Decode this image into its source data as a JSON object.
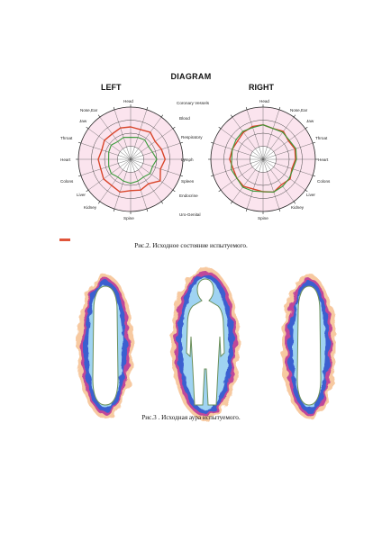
{
  "diagram": {
    "title": "DIAGRAM",
    "left_label": "LEFT",
    "right_label": "RIGHT",
    "left_labels": {
      "head": "Head",
      "nose_ear": "Nose,Ear",
      "jaw": "Jaw",
      "throat": "Throat",
      "heart": "Heart",
      "colons": "Colons",
      "liver": "Liver",
      "kidney": "Kidney",
      "spine": "Spine"
    },
    "center_labels": {
      "coronary_vessels": "Coronary Vessels",
      "blood": "Blood",
      "respiratory": "Respiratory",
      "lymph": "Lymph",
      "spleen": "Spleen",
      "endocrine": "Endocrine",
      "uro_genital": "Uro-Genital"
    },
    "right_labels": {
      "head": "Head",
      "nose_ear": "Nose,Ear",
      "jaw": "Jaw",
      "throat": "Throat",
      "heart": "Heart",
      "colons": "Colons",
      "liver": "Liver",
      "kidney": "Kidney",
      "spine": "Spine"
    }
  },
  "chart_data": [
    {
      "type": "radar",
      "panel": "LEFT",
      "rlim": [
        0,
        1
      ],
      "grid": true,
      "series": [
        {
          "color": "#d8452a",
          "values": [
            0.62,
            0.6,
            0.64,
            0.58,
            0.62,
            0.66,
            0.6,
            0.7,
            0.58,
            0.62,
            0.6,
            0.66,
            0.62,
            0.64,
            0.6,
            0.62,
            0.58,
            0.62,
            0.6,
            0.63
          ]
        },
        {
          "color": "#3a9a3a",
          "values": [
            0.42,
            0.44,
            0.46,
            0.42,
            0.44,
            0.5,
            0.44,
            0.46,
            0.42,
            0.44,
            0.46,
            0.44,
            0.42,
            0.46,
            0.44,
            0.42,
            0.44,
            0.46,
            0.42,
            0.44
          ]
        }
      ]
    },
    {
      "type": "radar",
      "panel": "RIGHT",
      "rlim": [
        0,
        1
      ],
      "grid": true,
      "series": [
        {
          "color": "#d8452a",
          "values": [
            0.66,
            0.62,
            0.66,
            0.6,
            0.64,
            0.62,
            0.58,
            0.64,
            0.6,
            0.66,
            0.62,
            0.6,
            0.64,
            0.62,
            0.6,
            0.64,
            0.62,
            0.6,
            0.64,
            0.66
          ]
        },
        {
          "color": "#3a9a3a",
          "values": [
            0.66,
            0.62,
            0.64,
            0.62,
            0.66,
            0.64,
            0.6,
            0.62,
            0.64,
            0.66,
            0.62,
            0.64,
            0.66,
            0.62,
            0.64,
            0.6,
            0.62,
            0.64,
            0.66,
            0.64
          ]
        }
      ]
    }
  ],
  "captions": {
    "fig2": "Рис.2.  Исходное состояние испытуемого.",
    "fig3": "Рис.3 . Исходная аура испытуемого."
  },
  "colors": {
    "accent_red": "#e0553a",
    "pink_fill": "#fbe4ee",
    "green_ring": "#3a9a3a",
    "aura_blue": "#3a5fd0",
    "aura_orange": "#f0a050"
  }
}
